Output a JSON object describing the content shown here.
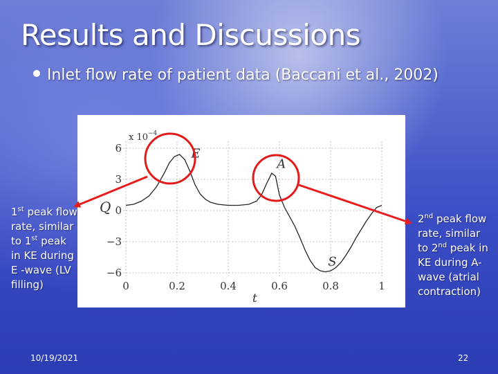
{
  "slide": {
    "title": "Results and Discussions",
    "bullet": "Inlet flow rate of patient data (Baccani et al., 2002)",
    "left_note": {
      "a": "1",
      "a_sup": "st",
      "b": " peak flow rate, similar to ",
      "c": "1",
      "c_sup": "st",
      "d": " peak in KE during E -wave (LV filling)"
    },
    "right_note": {
      "a": "2",
      "a_sup": "nd",
      "b": " peak flow rate, similar to ",
      "c": "2",
      "c_sup": "nd",
      "d": " peak in KE during A-wave (atrial contraction)"
    },
    "date": "10/19/2021",
    "page": "22"
  },
  "colors": {
    "accent_red": "#e11a1a",
    "arrow_red": "#e81c1c",
    "curve": "#222222"
  },
  "chart_data": {
    "type": "line",
    "title": "",
    "xlabel": "t",
    "ylabel": "Q",
    "y_multiplier": "x 10",
    "y_multiplier_exp": "−4",
    "xlim": [
      0,
      1
    ],
    "ylim": [
      -6,
      6
    ],
    "x_ticks": [
      0,
      0.2,
      0.4,
      0.6,
      0.8,
      1
    ],
    "x_tick_labels": [
      "0",
      "0.2",
      "0.4",
      "0.6",
      "0.8",
      "1"
    ],
    "y_ticks": [
      6,
      3,
      0,
      -3,
      -6
    ],
    "y_tick_labels": [
      "6",
      "3",
      "0",
      "−3",
      "−6"
    ],
    "grid": "dotted",
    "series": [
      {
        "x": [
          0,
          0.03,
          0.06,
          0.09,
          0.12,
          0.15,
          0.17,
          0.19,
          0.21,
          0.23,
          0.25,
          0.27,
          0.29,
          0.31,
          0.33,
          0.36,
          0.4,
          0.44,
          0.48,
          0.51,
          0.53,
          0.55,
          0.57,
          0.585,
          0.6,
          0.62,
          0.64,
          0.66,
          0.68,
          0.7,
          0.72,
          0.74,
          0.76,
          0.78,
          0.8,
          0.82,
          0.84,
          0.86,
          0.88,
          0.9,
          0.92,
          0.94,
          0.96,
          0.98,
          1.0
        ],
        "y": [
          0.5,
          0.6,
          0.9,
          1.4,
          2.3,
          3.6,
          4.6,
          5.2,
          5.4,
          4.9,
          3.8,
          2.5,
          1.6,
          1.1,
          0.8,
          0.6,
          0.5,
          0.5,
          0.6,
          0.9,
          1.5,
          2.6,
          3.6,
          3.3,
          1.5,
          0.3,
          -0.6,
          -1.5,
          -2.6,
          -3.8,
          -4.8,
          -5.5,
          -5.8,
          -5.9,
          -5.8,
          -5.5,
          -5.0,
          -4.3,
          -3.5,
          -2.6,
          -1.8,
          -1.0,
          -0.3,
          0.3,
          0.5
        ]
      }
    ],
    "annotations": [
      {
        "text": "E",
        "x": 0.255,
        "y": 5.1
      },
      {
        "text": "A",
        "x": 0.59,
        "y": 4.1
      },
      {
        "text": "S",
        "x": 0.79,
        "y": -5.3
      }
    ]
  }
}
